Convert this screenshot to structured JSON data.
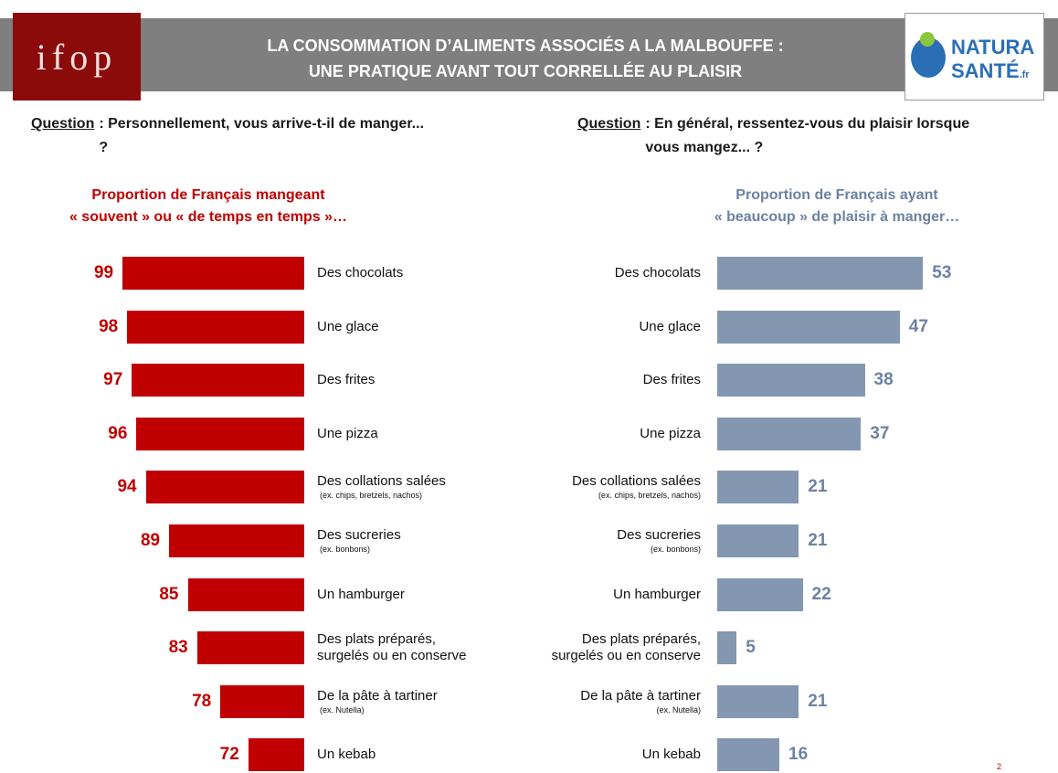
{
  "header": {
    "title_lines": [
      "LA CONSOMMATION D’ALIMENTS ASSOCIÉS A LA MALBOUFFE :",
      "UNE PRATIQUE AVANT TOUT CORRELLÉE AU PLAISIR"
    ],
    "logo_left": "ifop",
    "logo_right": {
      "line1": "NATURA",
      "line2": "SANTÉ",
      "suffix": ".fr"
    }
  },
  "questions": [
    {
      "label": "Question",
      "text": ": Personnellement, vous arrive-t-il de manger... ?"
    },
    {
      "label": "Question",
      "text": ": En général, ressentez-vous du plaisir lorsque vous mangez... ?"
    }
  ],
  "page_number": "2",
  "chart_data": [
    {
      "type": "bar",
      "orientation": "horizontal",
      "direction": "left",
      "subtitle_lines": [
        "Proportion de Français mangeant",
        "« souvent » ou « de temps en temps »…"
      ],
      "categories": [
        "Des chocolats",
        "Une glace",
        "Des frites",
        "Une pizza",
        "Des collations salées",
        "Des sucreries",
        "Un hamburger",
        "Des plats préparés, surgelés ou en conserve",
        "De la pâte à tartiner",
        "Un kebab"
      ],
      "category_notes": [
        null,
        null,
        null,
        null,
        "(ex. chips, bretzels, nachos)",
        "(ex. bonbons)",
        null,
        null,
        "(ex. Nutella)",
        null
      ],
      "values": [
        99,
        98,
        97,
        96,
        94,
        89,
        85,
        83,
        78,
        72
      ],
      "color": "#c00000",
      "label_color": "#c00000",
      "xlim": [
        60,
        100
      ]
    },
    {
      "type": "bar",
      "orientation": "horizontal",
      "direction": "right",
      "subtitle_lines": [
        "Proportion de Français ayant",
        "« beaucoup » de plaisir à manger…"
      ],
      "categories": [
        "Des chocolats",
        "Une glace",
        "Des frites",
        "Une pizza",
        "Des collations salées",
        "Des sucreries",
        "Un hamburger",
        "Des plats préparés, surgelés ou en conserve",
        "De la pâte à tartiner",
        "Un kebab"
      ],
      "category_notes": [
        null,
        null,
        null,
        null,
        "(ex. chips, bretzels, nachos)",
        "(ex. bonbons)",
        null,
        null,
        "(ex. Nutella)",
        null
      ],
      "values": [
        53,
        47,
        38,
        37,
        21,
        21,
        22,
        5,
        21,
        16
      ],
      "color": "#8497b0",
      "label_color": "#6b82a3",
      "xlim": [
        0,
        60
      ]
    }
  ]
}
